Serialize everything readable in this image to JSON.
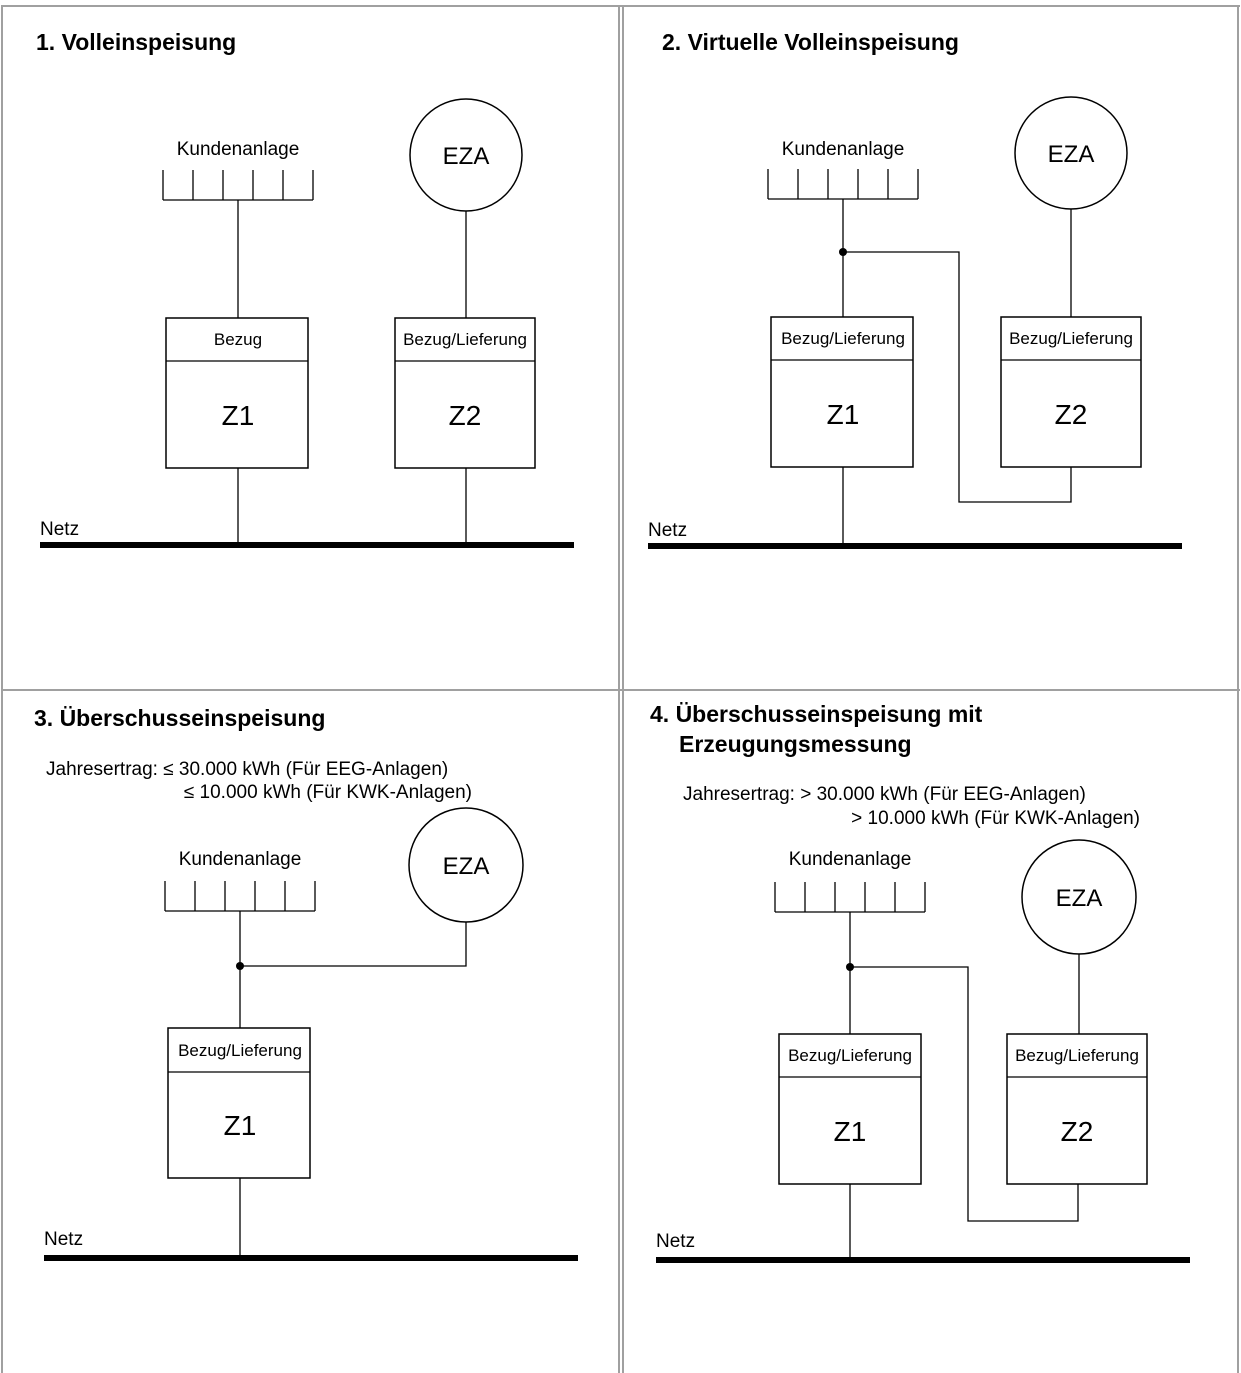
{
  "panels": [
    {
      "title": "1. Volleinspeisung",
      "customer_label": "Kundenanlage",
      "generator_label": "EZA",
      "grid_label": "Netz",
      "meter1": {
        "header": "Bezug",
        "name": "Z1"
      },
      "meter2": {
        "header": "Bezug/Lieferung",
        "name": "Z2"
      }
    },
    {
      "title": "2. Virtuelle Volleinspeisung",
      "customer_label": "Kundenanlage",
      "generator_label": "EZA",
      "grid_label": "Netz",
      "meter1": {
        "header": "Bezug/Lieferung",
        "name": "Z1"
      },
      "meter2": {
        "header": "Bezug/Lieferung",
        "name": "Z2"
      }
    },
    {
      "title": "3. Überschusseinspeisung",
      "yield_line1": "Jahresertrag: ≤ 30.000 kWh (Für EEG-Anlagen)",
      "yield_line2": "≤ 10.000 kWh (Für KWK-Anlagen)",
      "customer_label": "Kundenanlage",
      "generator_label": "EZA",
      "grid_label": "Netz",
      "meter1": {
        "header": "Bezug/Lieferung",
        "name": "Z1"
      }
    },
    {
      "title_line1": "4. Überschusseinspeisung mit",
      "title_line2": "Erzeugungsmessung",
      "yield_line1": "Jahresertrag: > 30.000 kWh (Für EEG-Anlagen)",
      "yield_line2": "> 10.000 kWh (Für KWK-Anlagen)",
      "customer_label": "Kundenanlage",
      "generator_label": "EZA",
      "grid_label": "Netz",
      "meter1": {
        "header": "Bezug/Lieferung",
        "name": "Z1"
      },
      "meter2": {
        "header": "Bezug/Lieferung",
        "name": "Z2"
      }
    }
  ]
}
